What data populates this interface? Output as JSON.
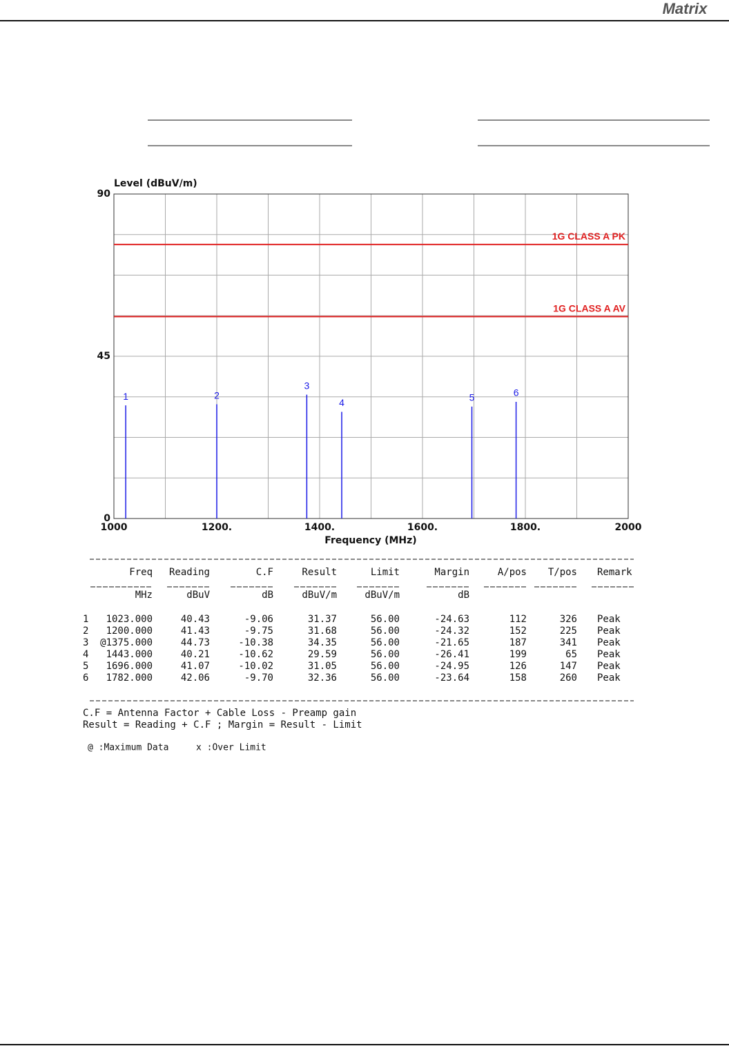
{
  "header": {
    "logo": "Matrix"
  },
  "chart_data": {
    "type": "stem",
    "y_label": "Level (dBuV/m)",
    "x_label": "Frequency (MHz)",
    "xlim": [
      1000,
      2000
    ],
    "ylim": [
      0,
      90
    ],
    "xticks": [
      1000,
      {
        "value": 1200,
        "label": "1200."
      },
      {
        "value": 1400,
        "label": "1400."
      },
      {
        "value": 1600,
        "label": "1600."
      },
      {
        "value": 1800,
        "label": "1800."
      },
      2000
    ],
    "yticks": [
      0,
      45,
      90
    ],
    "xgrid": [
      1000,
      1100,
      1200,
      1300,
      1400,
      1500,
      1600,
      1700,
      1800,
      1900,
      2000
    ],
    "ygrid": [
      0,
      11.25,
      22.5,
      33.75,
      45,
      56.25,
      67.5,
      78.75,
      90
    ],
    "grid": true,
    "limits": [
      {
        "name": "1G CLASS A PK",
        "value": 76,
        "color": "#e02020"
      },
      {
        "name": "1G CLASS A AV",
        "value": 56,
        "color": "#e02020"
      }
    ],
    "labels": [
      "1",
      "2",
      "3",
      "4",
      "5",
      "6"
    ],
    "x": [
      1023,
      1200,
      1375,
      1443,
      1696,
      1782
    ],
    "values": [
      31.37,
      31.68,
      34.35,
      29.59,
      31.05,
      32.36
    ],
    "color": "#1a1ae6"
  },
  "table": {
    "header": [
      "Freq",
      "Reading",
      "C.F",
      "Result",
      "Limit",
      "Margin",
      "A/pos",
      "T/pos",
      "Remark"
    ],
    "units": [
      "MHz",
      "dBuV",
      "dB",
      "dBuV/m",
      "dBuV/m",
      "dB"
    ],
    "rows": [
      [
        "1",
        "1023.000",
        "40.43",
        "-9.06",
        "31.37",
        "56.00",
        "-24.63",
        "112",
        "326",
        "Peak"
      ],
      [
        "2",
        "1200.000",
        "41.43",
        "-9.75",
        "31.68",
        "56.00",
        "-24.32",
        "152",
        "225",
        "Peak"
      ],
      [
        "3",
        "@1375.000",
        "44.73",
        "-10.38",
        "34.35",
        "56.00",
        "-21.65",
        "187",
        "341",
        "Peak"
      ],
      [
        "4",
        "1443.000",
        "40.21",
        "-10.62",
        "29.59",
        "56.00",
        "-26.41",
        "199",
        "65",
        "Peak"
      ],
      [
        "5",
        "1696.000",
        "41.07",
        "-10.02",
        "31.05",
        "56.00",
        "-24.95",
        "126",
        "147",
        "Peak"
      ],
      [
        "6",
        "1782.000",
        "42.06",
        "-9.70",
        "32.36",
        "56.00",
        "-23.64",
        "158",
        "260",
        "Peak"
      ]
    ]
  },
  "notes": [
    "C.F = Antenna Factor + Cable Loss - Preamp gain",
    "Result = Reading + C.F  ;  Margin = Result - Limit",
    "@ :Maximum Data",
    "x :Over Limit"
  ]
}
